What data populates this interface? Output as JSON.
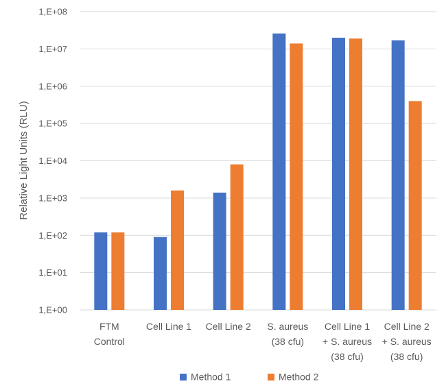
{
  "chart_data": {
    "type": "bar",
    "title": "",
    "xlabel": "",
    "ylabel": "Relative Light Units (RLU)",
    "yscale": "log",
    "ylim": [
      1,
      100000000
    ],
    "yticks": [
      {
        "value": 1,
        "label": "1,E+00"
      },
      {
        "value": 10,
        "label": "1,E+01"
      },
      {
        "value": 100,
        "label": "1,E+02"
      },
      {
        "value": 1000,
        "label": "1,E+03"
      },
      {
        "value": 10000,
        "label": "1,E+04"
      },
      {
        "value": 100000,
        "label": "1,E+05"
      },
      {
        "value": 1000000,
        "label": "1,E+06"
      },
      {
        "value": 10000000,
        "label": "1,E+07"
      },
      {
        "value": 100000000,
        "label": "1,E+08"
      }
    ],
    "grid": true,
    "legend_position": "bottom",
    "categories": [
      [
        "FTM",
        "Control"
      ],
      [
        "Cell Line 1"
      ],
      [
        "Cell Line 2"
      ],
      [
        "S. aureus",
        "(38 cfu)"
      ],
      [
        "Cell Line 1",
        "+ S. aureus",
        "(38 cfu)"
      ],
      [
        "Cell Line 2",
        "+ S. aureus",
        "(38 cfu)"
      ]
    ],
    "series": [
      {
        "name": "Method 1",
        "color": "#4472C4",
        "values": [
          120,
          90,
          1400,
          26000000,
          20000000,
          17000000
        ]
      },
      {
        "name": "Method 2",
        "color": "#ED7D31",
        "values": [
          120,
          1600,
          8000,
          14000000,
          19000000,
          400000
        ]
      }
    ]
  }
}
